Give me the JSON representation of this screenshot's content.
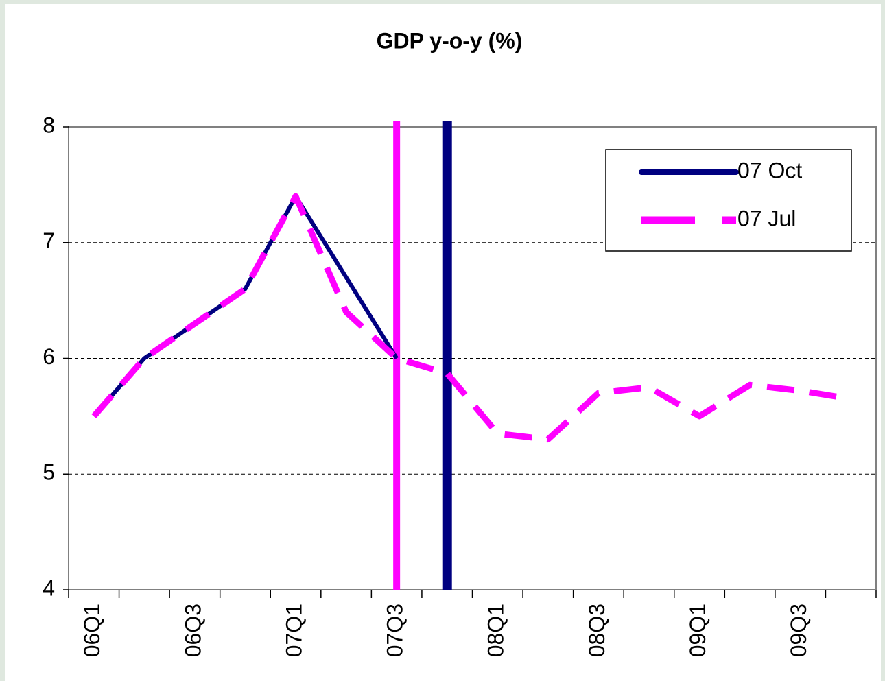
{
  "chart_data": {
    "type": "line",
    "title": "GDP y-o-y (%)",
    "categories": [
      "06Q1",
      null,
      "06Q3",
      null,
      "07Q1",
      null,
      "07Q3",
      null,
      "08Q1",
      null,
      "08Q3",
      null,
      "09Q1",
      null,
      "09Q3",
      null
    ],
    "series": [
      {
        "name": "07 Oct",
        "color": "#000080",
        "linestyle": "solid",
        "values": [
          5.5,
          6.0,
          6.3,
          6.6,
          7.4,
          6.7,
          6.0,
          null,
          null,
          null,
          null,
          null,
          null,
          null,
          null,
          null
        ]
      },
      {
        "name": "07 Jul",
        "color": "#ff00ff",
        "linestyle": "dashed",
        "values": [
          5.5,
          6.0,
          6.3,
          6.6,
          7.4,
          6.4,
          6.0,
          5.87,
          5.35,
          5.3,
          5.7,
          5.75,
          5.5,
          5.77,
          5.72,
          5.65
        ]
      }
    ],
    "vlines": [
      {
        "index": 6,
        "color": "#ff00ff"
      },
      {
        "index": 7,
        "color": "#000080"
      }
    ],
    "ylim": [
      4,
      8
    ],
    "yticks": [
      4,
      5,
      6,
      7,
      8
    ],
    "grid": true,
    "legend": "top-right"
  }
}
